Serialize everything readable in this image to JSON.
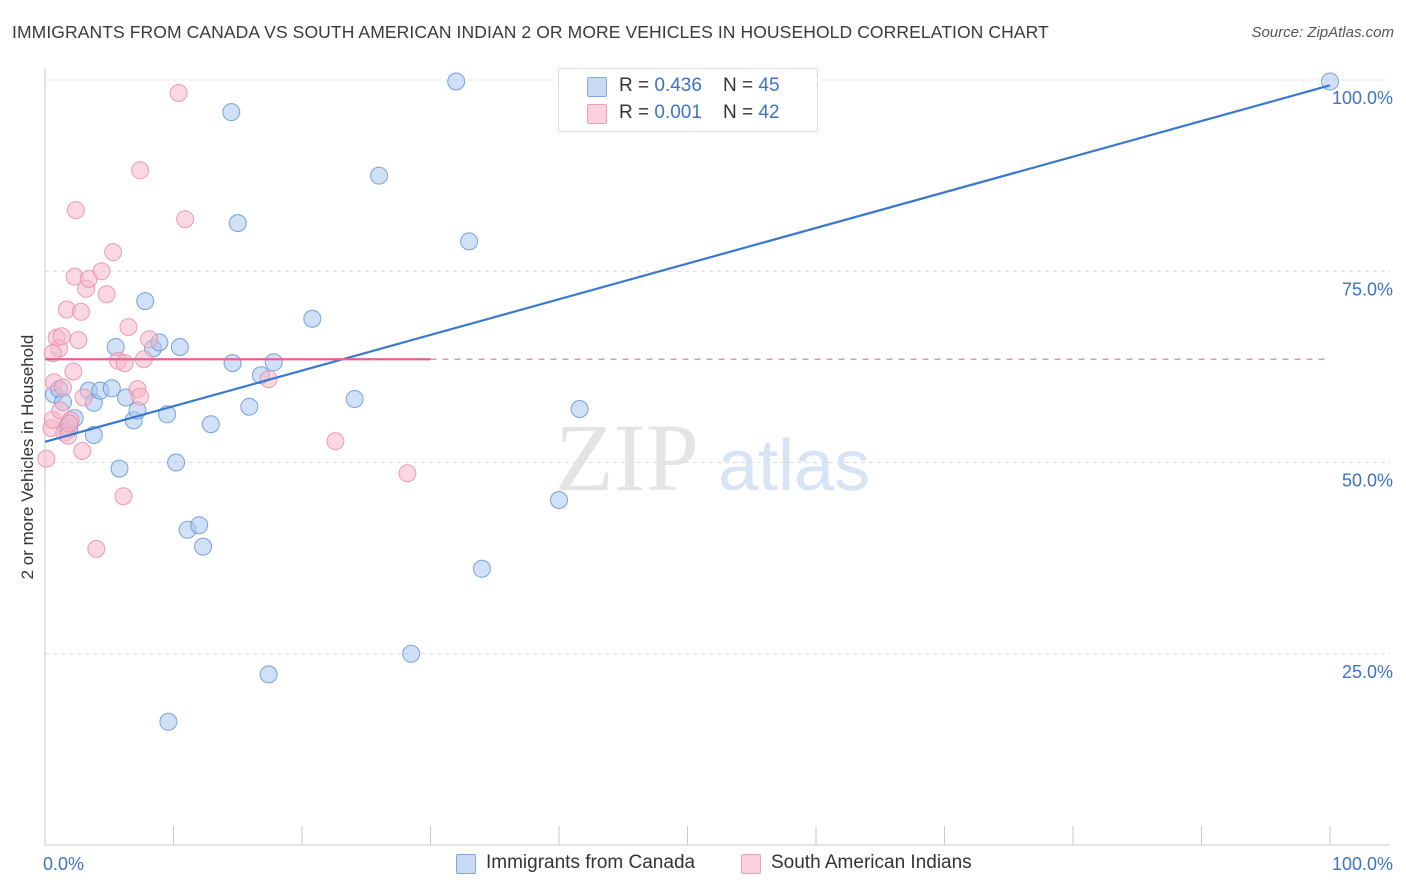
{
  "title": "IMMIGRANTS FROM CANADA VS SOUTH AMERICAN INDIAN 2 OR MORE VEHICLES IN HOUSEHOLD CORRELATION CHART",
  "source": "Source: ZipAtlas.com",
  "watermark": {
    "zip": "ZIP",
    "atlas": "atlas"
  },
  "stats_legend": [
    {
      "r_label": "R = ",
      "r_value": "0.436",
      "n_label": "N = ",
      "n_value": "45",
      "color": "#a9c6ef"
    },
    {
      "r_label": "R = ",
      "r_value": "0.001",
      "n_label": "N = ",
      "n_value": "42",
      "color": "#f5b6c9"
    }
  ],
  "bottom_legend": [
    {
      "label": "Immigrants from Canada",
      "color": "#a9c6ef"
    },
    {
      "label": "South American Indians",
      "color": "#f5b6c9"
    }
  ],
  "chart_data": {
    "type": "scatter",
    "title": "IMMIGRANTS FROM CANADA VS SOUTH AMERICAN INDIAN 2 OR MORE VEHICLES IN HOUSEHOLD CORRELATION CHART",
    "xlabel": "",
    "ylabel": "2 or more Vehicles in Household",
    "xlim": [
      0,
      100
    ],
    "ylim": [
      0,
      105
    ],
    "x_tick_labels": [
      "0.0%",
      "100.0%"
    ],
    "y_ticks": [
      25,
      50,
      75,
      100
    ],
    "y_tick_labels": [
      "25.0%",
      "50.0%",
      "75.0%",
      "100.0%"
    ],
    "grid": true,
    "legend_position": "bottom",
    "series": [
      {
        "name": "Immigrants from Canada",
        "color": "#5b8fd6",
        "fill": "#a9c6ef",
        "trend": {
          "x": [
            0,
            100
          ],
          "y": [
            52.7,
            99.3
          ],
          "color": "#3a78d0",
          "dashed_extension": false
        },
        "points": [
          [
            0.7,
            58.9
          ],
          [
            1.1,
            59.6
          ],
          [
            1.4,
            57.9
          ],
          [
            1.7,
            54.6
          ],
          [
            1.9,
            54.4
          ],
          [
            2.3,
            55.8
          ],
          [
            3.4,
            59.4
          ],
          [
            3.8,
            57.8
          ],
          [
            3.8,
            53.6
          ],
          [
            4.3,
            59.4
          ],
          [
            5.2,
            59.7
          ],
          [
            5.5,
            65.1
          ],
          [
            5.8,
            49.2
          ],
          [
            6.3,
            58.5
          ],
          [
            6.9,
            55.5
          ],
          [
            7.2,
            56.8
          ],
          [
            7.8,
            71.1
          ],
          [
            8.4,
            64.9
          ],
          [
            8.9,
            65.7
          ],
          [
            9.5,
            56.3
          ],
          [
            9.6,
            16.1
          ],
          [
            10.2,
            50.0
          ],
          [
            10.5,
            65.1
          ],
          [
            11.1,
            41.2
          ],
          [
            12.0,
            41.8
          ],
          [
            12.3,
            39.0
          ],
          [
            12.9,
            55.0
          ],
          [
            14.5,
            95.8
          ],
          [
            14.6,
            63.0
          ],
          [
            15.0,
            81.3
          ],
          [
            15.9,
            57.3
          ],
          [
            16.8,
            61.4
          ],
          [
            17.4,
            22.3
          ],
          [
            17.8,
            63.1
          ],
          [
            20.8,
            68.8
          ],
          [
            24.1,
            58.3
          ],
          [
            26.0,
            87.5
          ],
          [
            28.5,
            25.0
          ],
          [
            32.0,
            99.8
          ],
          [
            33.0,
            78.9
          ],
          [
            34.0,
            36.1
          ],
          [
            40.0,
            45.1
          ],
          [
            41.6,
            57.0
          ],
          [
            47.3,
            99.6
          ],
          [
            100.0,
            99.8
          ]
        ]
      },
      {
        "name": "South American Indians",
        "color": "#e58aa8",
        "fill": "#f5b6c9",
        "trend": {
          "x": [
            0,
            30
          ],
          "y": [
            63.5,
            63.5
          ],
          "dash_x": [
            30,
            100
          ],
          "color": "#e0648e",
          "dashed_extension": true
        },
        "points": [
          [
            0.1,
            50.5
          ],
          [
            0.5,
            54.5
          ],
          [
            0.6,
            55.6
          ],
          [
            0.7,
            60.5
          ],
          [
            0.9,
            66.3
          ],
          [
            1.1,
            64.9
          ],
          [
            1.2,
            56.8
          ],
          [
            1.3,
            66.5
          ],
          [
            1.4,
            59.8
          ],
          [
            1.5,
            53.9
          ],
          [
            1.7,
            70.0
          ],
          [
            1.8,
            53.5
          ],
          [
            2.0,
            55.5
          ],
          [
            2.2,
            61.9
          ],
          [
            2.3,
            74.3
          ],
          [
            2.4,
            83.0
          ],
          [
            2.6,
            66.0
          ],
          [
            2.8,
            69.7
          ],
          [
            2.9,
            51.5
          ],
          [
            3.0,
            58.5
          ],
          [
            3.2,
            72.7
          ],
          [
            3.4,
            74.0
          ],
          [
            4.0,
            38.7
          ],
          [
            4.4,
            75.0
          ],
          [
            4.8,
            72.0
          ],
          [
            5.3,
            77.5
          ],
          [
            5.7,
            63.3
          ],
          [
            6.1,
            45.6
          ],
          [
            6.2,
            63.0
          ],
          [
            6.5,
            67.7
          ],
          [
            7.2,
            59.6
          ],
          [
            7.4,
            58.6
          ],
          [
            7.4,
            88.2
          ],
          [
            7.7,
            63.5
          ],
          [
            8.1,
            66.1
          ],
          [
            10.4,
            98.3
          ],
          [
            10.9,
            81.8
          ],
          [
            17.4,
            60.9
          ],
          [
            22.6,
            52.8
          ],
          [
            28.2,
            48.6
          ],
          [
            0.6,
            64.3
          ],
          [
            1.9,
            55.1
          ]
        ]
      }
    ]
  }
}
